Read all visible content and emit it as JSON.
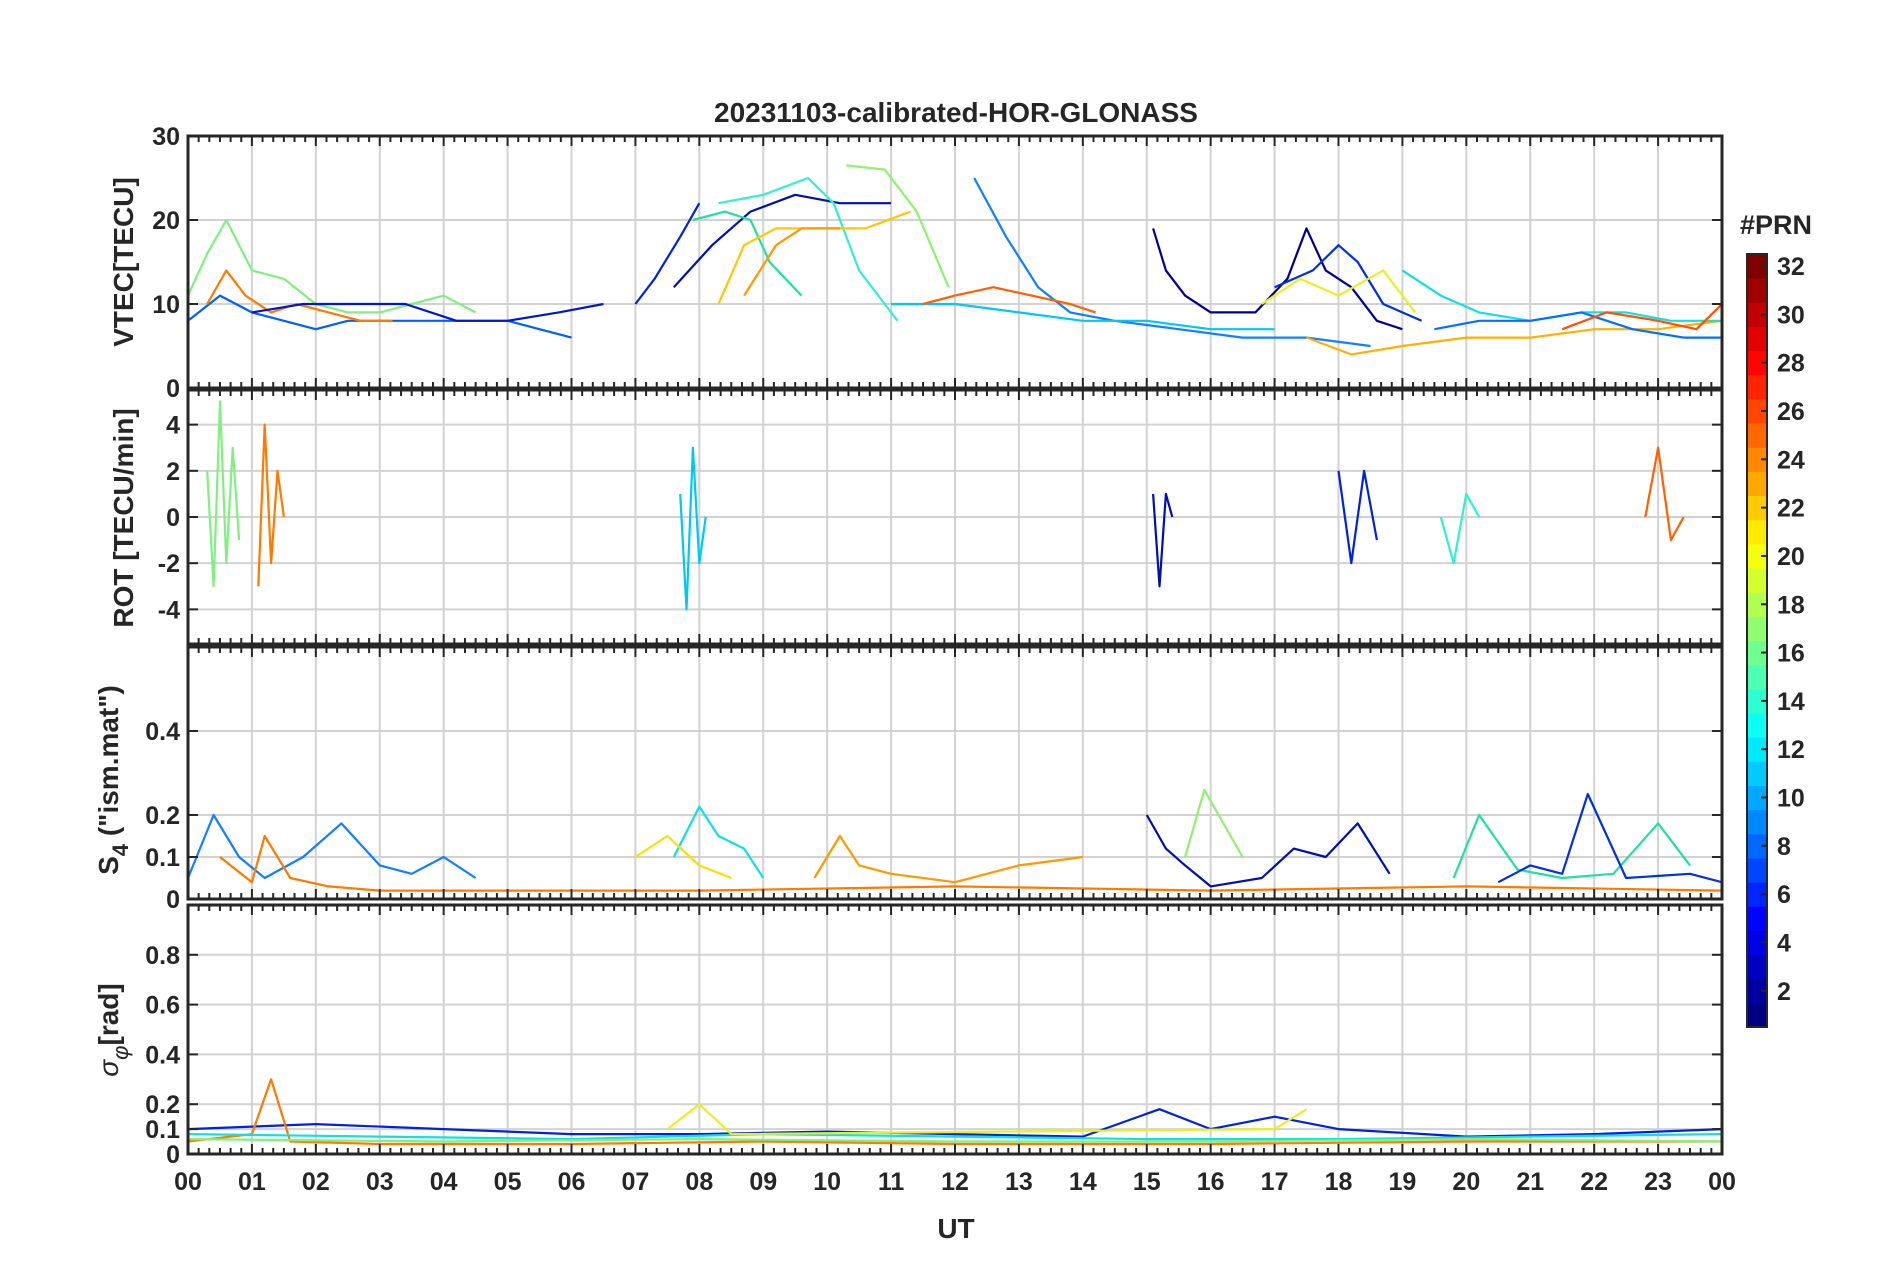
{
  "chart_data": {
    "type": "line",
    "title": "20231103-calibrated-HOR-GLONASS",
    "xlabel": "UT",
    "x_tick_labels": [
      "00",
      "01",
      "02",
      "03",
      "04",
      "05",
      "06",
      "07",
      "08",
      "09",
      "10",
      "11",
      "12",
      "13",
      "14",
      "15",
      "16",
      "17",
      "18",
      "19",
      "20",
      "21",
      "22",
      "23",
      "00"
    ],
    "xlim_hours": [
      0,
      24
    ],
    "grid": true,
    "colorbar": {
      "label": "#PRN",
      "range": [
        1,
        32
      ],
      "tick_labels": [
        "2",
        "4",
        "6",
        "8",
        "10",
        "12",
        "14",
        "16",
        "18",
        "20",
        "22",
        "24",
        "26",
        "28",
        "30",
        "32"
      ],
      "colormap": "jet"
    },
    "panels": [
      {
        "id": "vtec",
        "ylabel": "VTEC[TECU]",
        "ylim": [
          0,
          30
        ],
        "y_ticks": [
          0,
          10,
          20,
          30
        ],
        "y_tick_labels": [
          "0",
          "10",
          "20",
          "30"
        ],
        "series": [
          {
            "prn": 3,
            "color": "#0022dd",
            "x": [
              7.0,
              7.3,
              7.7,
              8.0
            ],
            "y": [
              10,
              13,
              18,
              22
            ]
          },
          {
            "prn": 2,
            "color": "#0010b0",
            "x": [
              7.6,
              8.2,
              8.8,
              9.5,
              10.2,
              11.0
            ],
            "y": [
              12,
              17,
              21,
              23,
              22,
              22
            ]
          },
          {
            "prn": 15,
            "color": "#20e0a0",
            "x": [
              7.9,
              8.4,
              8.8,
              9.1,
              9.6
            ],
            "y": [
              20,
              21,
              20,
              15,
              11
            ]
          },
          {
            "prn": 14,
            "color": "#30f0d0",
            "x": [
              8.3,
              9.0,
              9.7,
              10.1,
              10.5,
              11.1
            ],
            "y": [
              22,
              23,
              25,
              22,
              14,
              8
            ]
          },
          {
            "prn": 17,
            "color": "#90f070",
            "x": [
              10.3,
              10.9,
              11.4,
              11.9
            ],
            "y": [
              26.5,
              26,
              21,
              12
            ]
          },
          {
            "prn": 21,
            "color": "#ffc800",
            "x": [
              8.3,
              8.7,
              9.2,
              9.8,
              10.6,
              11.3
            ],
            "y": [
              10,
              17,
              19,
              19,
              19,
              21
            ]
          },
          {
            "prn": 23,
            "color": "#ff9900",
            "x": [
              8.7,
              9.2,
              9.6,
              10.2
            ],
            "y": [
              11,
              17,
              19,
              19
            ]
          },
          {
            "prn": 8,
            "color": "#1080ff",
            "x": [
              12.3,
              12.8,
              13.3,
              13.8,
              14.5,
              15.5,
              16.5,
              17.5,
              18.5
            ],
            "y": [
              25,
              18,
              12,
              9,
              8,
              7,
              6,
              6,
              5
            ]
          },
          {
            "prn": 1,
            "color": "#000090",
            "x": [
              15.1,
              15.3,
              15.6,
              16.0,
              16.7,
              17.2,
              17.5,
              17.8,
              18.2,
              18.6,
              19.0
            ],
            "y": [
              19,
              14,
              11,
              9,
              9,
              13,
              19,
              14,
              12,
              8,
              7
            ]
          },
          {
            "prn": 5,
            "color": "#0030e0",
            "x": [
              17.0,
              17.6,
              18.0,
              18.3,
              18.7,
              19.3
            ],
            "y": [
              12,
              14,
              17,
              15,
              10,
              8
            ]
          },
          {
            "prn": 19,
            "color": "#e8f020",
            "x": [
              16.8,
              17.4,
              18.0,
              18.7,
              19.2
            ],
            "y": [
              10,
              13,
              11,
              14,
              9
            ]
          },
          {
            "prn": 22,
            "color": "#ffb000",
            "x": [
              17.5,
              18.2,
              19.0,
              20.0,
              21.0,
              22.0,
              23.0,
              24.0
            ],
            "y": [
              6,
              4,
              5,
              6,
              6,
              7,
              7,
              8
            ]
          },
          {
            "prn": 10,
            "color": "#0060ff",
            "x": [
              0.0,
              0.5,
              1.0,
              1.5,
              2.0,
              2.5,
              3.0,
              3.5,
              4.0,
              4.5,
              5.0,
              5.5,
              6.0
            ],
            "y": [
              8,
              11,
              9,
              8,
              7,
              8,
              8,
              8,
              8,
              8,
              8,
              7,
              6
            ]
          },
          {
            "prn": 16,
            "color": "#80f080",
            "x": [
              0.0,
              0.3,
              0.6,
              1.0,
              1.5,
              2.0,
              2.5,
              3.0,
              3.5,
              4.0,
              4.5
            ],
            "y": [
              11,
              16,
              20,
              14,
              13,
              10,
              9,
              9,
              10,
              11,
              9
            ]
          },
          {
            "prn": 24,
            "color": "#ff7a00",
            "x": [
              0.3,
              0.6,
              0.9,
              1.3,
              1.7,
              2.2,
              2.7,
              3.2
            ],
            "y": [
              10,
              14,
              11,
              9,
              10,
              9,
              8,
              8
            ]
          },
          {
            "prn": 4,
            "color": "#0018c8",
            "x": [
              1.0,
              1.8,
              2.6,
              3.4,
              4.2,
              5.0,
              5.8,
              6.5
            ],
            "y": [
              9,
              10,
              10,
              10,
              8,
              8,
              9,
              10
            ]
          },
          {
            "prn": 12,
            "color": "#00c8f0",
            "x": [
              11.0,
              12.0,
              13.0,
              14.0,
              15.0,
              16.0,
              17.0
            ],
            "y": [
              10,
              10,
              9,
              8,
              8,
              7,
              7
            ]
          },
          {
            "prn": 25,
            "color": "#ff6000",
            "x": [
              11.5,
              12.0,
              12.6,
              13.2,
              13.8,
              14.2
            ],
            "y": [
              10,
              11,
              12,
              11,
              10,
              9
            ]
          },
          {
            "prn": 13,
            "color": "#10e0e0",
            "x": [
              19.0,
              19.6,
              20.2,
              21.0,
              21.8,
              22.5,
              23.2,
              24.0
            ],
            "y": [
              14,
              11,
              9,
              8,
              9,
              9,
              8,
              8
            ]
          },
          {
            "prn": 9,
            "color": "#0070ff",
            "x": [
              19.5,
              20.2,
              21.0,
              21.8,
              22.6,
              23.4,
              24.0
            ],
            "y": [
              7,
              8,
              8,
              9,
              7,
              6,
              6
            ]
          },
          {
            "prn": 26,
            "color": "#ff5000",
            "x": [
              21.5,
              22.2,
              23.0,
              23.6,
              24.0
            ],
            "y": [
              7,
              9,
              8,
              7,
              10
            ]
          }
        ]
      },
      {
        "id": "rot",
        "ylabel": "ROT [TECU/min]",
        "ylim": [
          -5.5,
          5.5
        ],
        "y_ticks": [
          -4,
          -2,
          0,
          2,
          4
        ],
        "y_tick_labels": [
          "-4",
          "-2",
          "0",
          "2",
          "4"
        ],
        "series": [
          {
            "prn": 16,
            "color": "#80f080",
            "x": [
              0.3,
              0.4,
              0.5,
              0.6,
              0.7,
              0.8
            ],
            "y": [
              2,
              -3,
              5,
              -2,
              3,
              -1
            ]
          },
          {
            "prn": 24,
            "color": "#ff7a00",
            "x": [
              1.1,
              1.2,
              1.3,
              1.4,
              1.5
            ],
            "y": [
              -3,
              4,
              -2,
              2,
              0
            ]
          },
          {
            "prn": 12,
            "color": "#00c8f0",
            "x": [
              7.7,
              7.8,
              7.9,
              8.0,
              8.1
            ],
            "y": [
              1,
              -4,
              3,
              -2,
              0
            ]
          },
          {
            "prn": 2,
            "color": "#0010b0",
            "x": [
              15.1,
              15.2,
              15.3,
              15.4
            ],
            "y": [
              1,
              -3,
              1,
              0
            ]
          },
          {
            "prn": 3,
            "color": "#0022dd",
            "x": [
              18.0,
              18.2,
              18.4,
              18.6
            ],
            "y": [
              2,
              -2,
              2,
              -1
            ]
          },
          {
            "prn": 25,
            "color": "#ff6000",
            "x": [
              22.8,
              23.0,
              23.2,
              23.4
            ],
            "y": [
              0,
              3,
              -1,
              0
            ]
          },
          {
            "prn": 14,
            "color": "#30f0d0",
            "x": [
              19.6,
              19.8,
              20.0,
              20.2
            ],
            "y": [
              0,
              -2,
              1,
              0
            ]
          }
        ]
      },
      {
        "id": "s4",
        "ylabel": "S4 (\"ism.mat\")",
        "ylabel_main": "S",
        "ylabel_sub": "4",
        "ylabel_rest": " (\"ism.mat\")",
        "ylim": [
          0,
          0.6
        ],
        "y_ticks": [
          0,
          0.1,
          0.2,
          0.4
        ],
        "y_tick_labels": [
          "0",
          "0.1",
          "0.2",
          "0.4"
        ],
        "series": [
          {
            "prn": 8,
            "color": "#1080ff",
            "x": [
              0.0,
              0.4,
              0.8,
              1.2,
              1.8,
              2.4,
              3.0,
              3.5,
              4.0,
              4.5
            ],
            "y": [
              0.05,
              0.2,
              0.1,
              0.05,
              0.1,
              0.18,
              0.08,
              0.06,
              0.1,
              0.05
            ]
          },
          {
            "prn": 13,
            "color": "#10e0e0",
            "x": [
              7.6,
              8.0,
              8.3,
              8.7,
              9.0
            ],
            "y": [
              0.1,
              0.22,
              0.15,
              0.12,
              0.05
            ]
          },
          {
            "prn": 20,
            "color": "#f8e000",
            "x": [
              7.0,
              7.5,
              8.0,
              8.5
            ],
            "y": [
              0.1,
              0.15,
              0.08,
              0.05
            ]
          },
          {
            "prn": 23,
            "color": "#ff9900",
            "x": [
              9.8,
              10.2,
              10.5,
              11.0,
              12.0,
              13.0,
              14.0
            ],
            "y": [
              0.05,
              0.15,
              0.08,
              0.06,
              0.04,
              0.08,
              0.1
            ]
          },
          {
            "prn": 2,
            "color": "#0010b0",
            "x": [
              15.0,
              15.3,
              15.6,
              16.0,
              16.8,
              17.3,
              17.8,
              18.3,
              18.8
            ],
            "y": [
              0.2,
              0.12,
              0.08,
              0.03,
              0.05,
              0.12,
              0.1,
              0.18,
              0.06
            ]
          },
          {
            "prn": 17,
            "color": "#90f070",
            "x": [
              15.6,
              15.9,
              16.2,
              16.5
            ],
            "y": [
              0.1,
              0.26,
              0.18,
              0.1
            ]
          },
          {
            "prn": 15,
            "color": "#20e0a0",
            "x": [
              19.8,
              20.2,
              20.8,
              21.5,
              22.3,
              23.0,
              23.5
            ],
            "y": [
              0.05,
              0.2,
              0.07,
              0.05,
              0.06,
              0.18,
              0.08
            ]
          },
          {
            "prn": 5,
            "color": "#0030e0",
            "x": [
              20.5,
              21.0,
              21.5,
              21.9,
              22.5,
              23.5,
              24.0
            ],
            "y": [
              0.04,
              0.08,
              0.06,
              0.25,
              0.05,
              0.06,
              0.04
            ]
          },
          {
            "prn": 24,
            "color": "#ff7a00",
            "x": [
              0.5,
              1.0,
              1.2,
              1.6,
              2.2,
              3.0,
              5.0,
              8.0,
              12.0,
              16.0,
              20.0,
              24.0
            ],
            "y": [
              0.1,
              0.04,
              0.15,
              0.05,
              0.03,
              0.02,
              0.02,
              0.02,
              0.03,
              0.02,
              0.03,
              0.02
            ]
          }
        ]
      },
      {
        "id": "sigma",
        "ylabel": "σφ[rad]",
        "ylabel_main": "σ",
        "ylabel_sub": "φ",
        "ylabel_rest": "[rad]",
        "ylim": [
          0,
          1.0
        ],
        "y_ticks": [
          0,
          0.1,
          0.2,
          0.4,
          0.6,
          0.8
        ],
        "y_tick_labels": [
          "0",
          "0.1",
          "0.2",
          "0.4",
          "0.6",
          "0.8"
        ],
        "series": [
          {
            "prn": 3,
            "color": "#0022dd",
            "x": [
              0.0,
              2.0,
              4.0,
              6.0,
              8.0,
              10.0,
              12.0,
              14.0,
              15.2,
              16.0,
              17.0,
              18.0,
              20.0,
              22.0,
              24.0
            ],
            "y": [
              0.1,
              0.12,
              0.1,
              0.08,
              0.08,
              0.09,
              0.08,
              0.07,
              0.18,
              0.1,
              0.15,
              0.1,
              0.07,
              0.08,
              0.1
            ]
          },
          {
            "prn": 24,
            "color": "#ff7a00",
            "x": [
              0.0,
              1.0,
              1.3,
              1.6,
              3.0,
              6.0,
              9.0,
              12.0,
              16.0,
              20.0,
              24.0
            ],
            "y": [
              0.05,
              0.08,
              0.3,
              0.05,
              0.04,
              0.04,
              0.05,
              0.04,
              0.04,
              0.05,
              0.05
            ]
          },
          {
            "prn": 13,
            "color": "#10e0e0",
            "x": [
              0.0,
              3.0,
              6.0,
              9.0,
              12.0,
              15.0,
              18.0,
              21.0,
              24.0
            ],
            "y": [
              0.08,
              0.07,
              0.06,
              0.08,
              0.07,
              0.06,
              0.06,
              0.07,
              0.08
            ]
          },
          {
            "prn": 19,
            "color": "#e8f020",
            "x": [
              7.5,
              8.0,
              8.5,
              17.0,
              17.5
            ],
            "y": [
              0.1,
              0.2,
              0.08,
              0.1,
              0.18
            ]
          },
          {
            "prn": 16,
            "color": "#80f080",
            "x": [
              0.0,
              4.0,
              8.0,
              12.0,
              16.0,
              20.0,
              24.0
            ],
            "y": [
              0.06,
              0.05,
              0.06,
              0.05,
              0.05,
              0.06,
              0.05
            ]
          }
        ]
      }
    ]
  }
}
